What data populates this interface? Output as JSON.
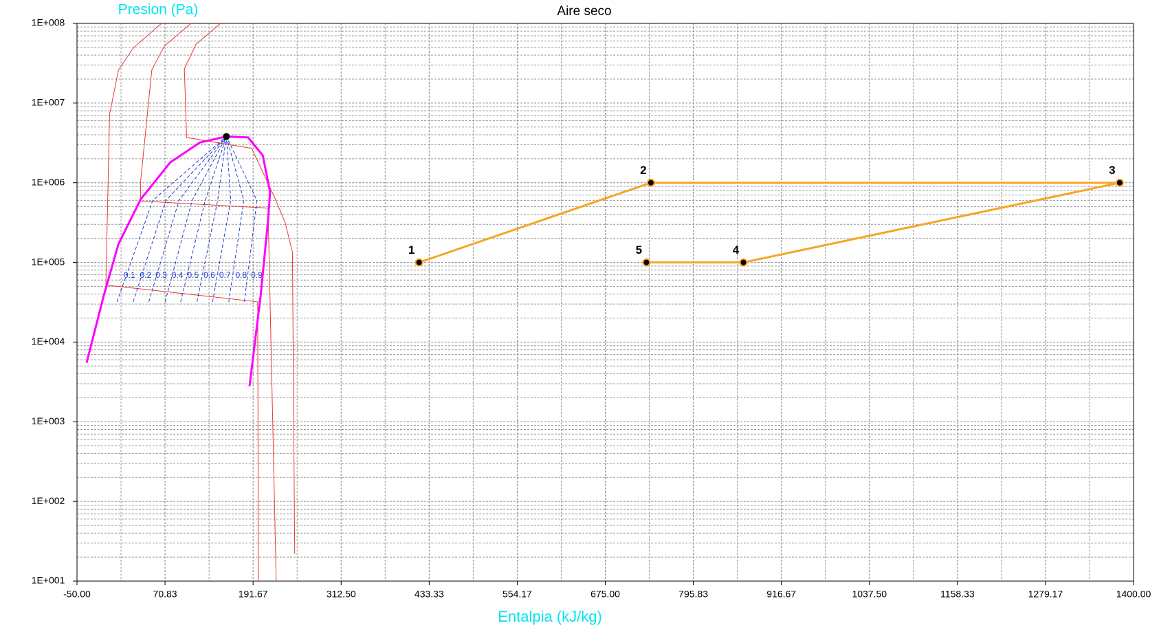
{
  "chart_data": {
    "type": "line",
    "title": "Aire seco",
    "ylabel": "Presion (Pa)",
    "xlabel": "Entalpia (kJ/kg)",
    "y_scale": "log",
    "grid": true,
    "minor_grid": true,
    "xlim": [
      -50,
      1400
    ],
    "ylim": [
      10,
      100000000
    ],
    "xticks": [
      {
        "value": -50,
        "label": "-50.00"
      },
      {
        "value": 70.83,
        "label": "70.83"
      },
      {
        "value": 191.67,
        "label": "191.67"
      },
      {
        "value": 312.5,
        "label": "312.50"
      },
      {
        "value": 433.33,
        "label": "433.33"
      },
      {
        "value": 554.17,
        "label": "554.17"
      },
      {
        "value": 675,
        "label": "675.00"
      },
      {
        "value": 795.83,
        "label": "795.83"
      },
      {
        "value": 916.67,
        "label": "916.67"
      },
      {
        "value": 1037.5,
        "label": "1037.50"
      },
      {
        "value": 1158.33,
        "label": "1158.33"
      },
      {
        "value": 1279.17,
        "label": "1279.17"
      },
      {
        "value": 1400,
        "label": "1400.00"
      }
    ],
    "yticks": [
      {
        "value": 10,
        "label": "1E+001"
      },
      {
        "value": 100,
        "label": "1E+002"
      },
      {
        "value": 1000,
        "label": "1E+003"
      },
      {
        "value": 10000,
        "label": "1E+004"
      },
      {
        "value": 100000,
        "label": "1E+005"
      },
      {
        "value": 1000000,
        "label": "1E+006"
      },
      {
        "value": 10000000,
        "label": "1E+007"
      },
      {
        "value": 100000000,
        "label": "1E+008"
      }
    ],
    "critical_point": {
      "x": 155,
      "y": 3800000,
      "color": "#000000"
    },
    "series": [
      {
        "kind": "isotherm",
        "color": "#e53935",
        "x": [
          65.9,
          27.2,
          6.9,
          -5.3,
          -10.4,
          198,
          199
        ],
        "values": [
          100000000,
          49000000,
          26000000,
          7200000,
          52000,
          32000,
          10
        ]
      },
      {
        "kind": "isotherm",
        "color": "#e53935",
        "x": [
          106.5,
          69.9,
          52.6,
          37.4,
          37.4,
          212.2,
          223.4
        ],
        "values": [
          100000000,
          52000000,
          26000000,
          1050000,
          590000,
          480000,
          10
        ]
      },
      {
        "kind": "isotherm",
        "color": "#e53935",
        "x": [
          147,
          113.6,
          97.4,
          100.4,
          189.8,
          220.3,
          235.6,
          245.7,
          248.8
        ],
        "values": [
          100000000,
          55000000,
          27000000,
          3700000,
          2700000,
          680000,
          320000,
          135000,
          22
        ]
      },
      {
        "kind": "quality",
        "label": "0.1",
        "color": "#1f3fd6",
        "dashed": true,
        "x": [
          4.9,
          54,
          155
        ],
        "values": [
          32000,
          600000,
          3800000
        ]
      },
      {
        "kind": "quality",
        "label": "0.2",
        "color": "#1f3fd6",
        "dashed": true,
        "x": [
          27.2,
          72,
          155
        ],
        "values": [
          32000,
          600000,
          3800000
        ]
      },
      {
        "kind": "quality",
        "label": "0.3",
        "color": "#1f3fd6",
        "dashed": true,
        "x": [
          48.6,
          90,
          155
        ],
        "values": [
          32000,
          600000,
          3800000
        ]
      },
      {
        "kind": "quality",
        "label": "0.4",
        "color": "#1f3fd6",
        "dashed": true,
        "x": [
          70.9,
          108,
          155
        ],
        "values": [
          32000,
          600000,
          3800000
        ]
      },
      {
        "kind": "quality",
        "label": "0.5",
        "color": "#1f3fd6",
        "dashed": true,
        "x": [
          92.3,
          126,
          155
        ],
        "values": [
          32000,
          600000,
          3800000
        ]
      },
      {
        "kind": "quality",
        "label": "0.6",
        "color": "#1f3fd6",
        "dashed": true,
        "x": [
          114.6,
          143,
          155
        ],
        "values": [
          32000,
          600000,
          3800000
        ]
      },
      {
        "kind": "quality",
        "label": "0.7",
        "color": "#1f3fd6",
        "dashed": true,
        "x": [
          136,
          161,
          155
        ],
        "values": [
          32000,
          600000,
          3800000
        ]
      },
      {
        "kind": "quality",
        "label": "0.8",
        "color": "#1f3fd6",
        "dashed": true,
        "x": [
          158.3,
          179,
          155
        ],
        "values": [
          32000,
          600000,
          3800000
        ]
      },
      {
        "kind": "quality",
        "label": "0.9",
        "color": "#1f3fd6",
        "dashed": true,
        "x": [
          179.7,
          197,
          155
        ],
        "values": [
          32000,
          600000,
          3800000
        ]
      },
      {
        "kind": "saturation",
        "color": "#ff00ff",
        "width": 3,
        "x": [
          -36.8,
          -13.4,
          6.9,
          37.4,
          78,
          118.7,
          155
        ],
        "values": [
          5500,
          38000,
          170000,
          620000,
          1800000,
          3200000,
          3800000
        ]
      },
      {
        "kind": "saturation",
        "color": "#ff00ff",
        "width": 3,
        "x": [
          155,
          184.8,
          205,
          215,
          212,
          202,
          186.8
        ],
        "values": [
          3800000,
          3700000,
          2200000,
          760000,
          320000,
          38000,
          2800
        ]
      },
      {
        "kind": "cycle",
        "color": "#f5a623",
        "width": 3,
        "markers": true,
        "x": [
          419.5,
          737.6,
          1381,
          864.6,
          731.5
        ],
        "values": [
          100000,
          1000000,
          1000000,
          100000,
          100000
        ],
        "point_labels": [
          "1",
          "2",
          "3",
          "4",
          "5"
        ]
      }
    ]
  }
}
